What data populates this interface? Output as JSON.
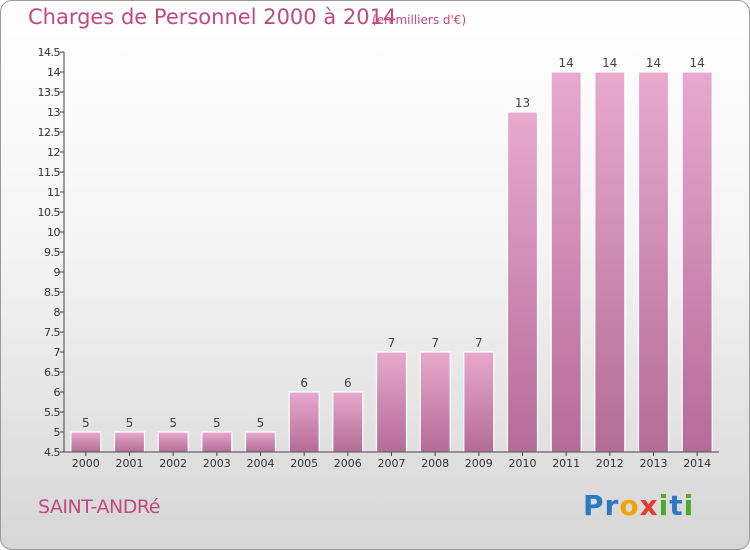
{
  "header": {
    "title": "Charges de Personnel 2000 à 2014",
    "subtitle": "(en milliers d'€)"
  },
  "footer": {
    "commune": "SAINT-ANDRé",
    "brand_letters": [
      {
        "char": "P",
        "color": "#2f78c4"
      },
      {
        "char": "r",
        "color": "#2f78c4"
      },
      {
        "char": "o",
        "color": "#f2a300"
      },
      {
        "char": "x",
        "color": "#e53b30"
      },
      {
        "char": "i",
        "color": "#4ea82a"
      },
      {
        "char": "t",
        "color": "#2f78c4"
      },
      {
        "char": "i",
        "color": "#4ea82a"
      }
    ]
  },
  "colors": {
    "title": "#c2497f",
    "bar_light": "#e7a9cd",
    "bar_dark": "#b46c96",
    "axis": "#444444"
  },
  "chart_data": {
    "type": "bar",
    "title": "Charges de Personnel 2000 à 2014",
    "subtitle": "(en milliers d'€)",
    "categories": [
      "2000",
      "2001",
      "2002",
      "2003",
      "2004",
      "2005",
      "2006",
      "2007",
      "2008",
      "2009",
      "2010",
      "2011",
      "2012",
      "2013",
      "2014"
    ],
    "values": [
      5,
      5,
      5,
      5,
      5,
      6,
      6,
      7,
      7,
      7,
      13,
      14,
      14,
      14,
      14
    ],
    "data_labels": [
      "5",
      "5",
      "5",
      "5",
      "5",
      "6",
      "6",
      "7",
      "7",
      "7",
      "13",
      "14",
      "14",
      "14",
      "14"
    ],
    "ylim": [
      4.5,
      14.5
    ],
    "yticks": [
      4.5,
      5,
      5.5,
      6,
      6.5,
      7,
      7.5,
      8,
      8.5,
      9,
      9.5,
      10,
      10.5,
      11,
      11.5,
      12,
      12.5,
      13,
      13.5,
      14,
      14.5
    ],
    "ytick_labels": [
      "4.5",
      "5",
      "5.5",
      "6",
      "6.5",
      "7",
      "7.5",
      "8",
      "8.5",
      "9",
      "9.5",
      "10",
      "10.5",
      "11",
      "11.5",
      "12",
      "12.5",
      "13",
      "13.5",
      "14",
      "14.5"
    ],
    "xlabel": "",
    "ylabel": "",
    "grid": false,
    "legend": "none"
  }
}
